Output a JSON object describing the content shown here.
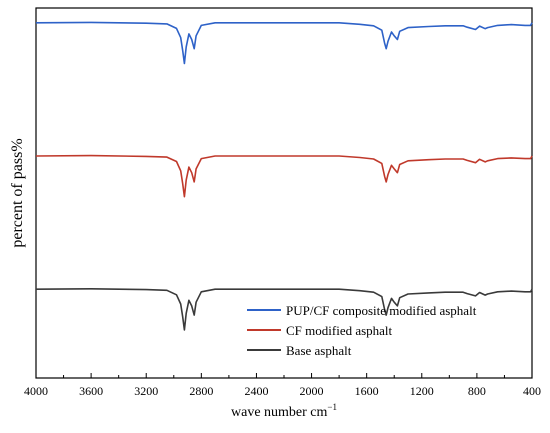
{
  "chart_data": {
    "type": "line",
    "title": "",
    "xlabel": "wave number cm",
    "xlabel_sup": "−1",
    "ylabel": "percent of pass%",
    "xlim": [
      4000,
      400
    ],
    "x_reversed": true,
    "xticks": [
      4000,
      3600,
      3200,
      2800,
      2400,
      2000,
      1600,
      1200,
      800,
      400
    ],
    "y_ticks_shown": false,
    "grid": false,
    "legend_position": "bottom-right",
    "series": [
      {
        "name": "PUP/CF composite modified asphalt",
        "color": "#2e62c8",
        "baseline": 100,
        "points": [
          [
            4000,
            100
          ],
          [
            3600,
            100.1
          ],
          [
            3200,
            99.9
          ],
          [
            3050,
            99.7
          ],
          [
            2980,
            98.5
          ],
          [
            2950,
            96
          ],
          [
            2935,
            92.5
          ],
          [
            2923,
            89
          ],
          [
            2910,
            93.5
          ],
          [
            2890,
            97
          ],
          [
            2870,
            95.5
          ],
          [
            2852,
            93
          ],
          [
            2838,
            96.5
          ],
          [
            2800,
            99.3
          ],
          [
            2700,
            100
          ],
          [
            2400,
            100
          ],
          [
            2000,
            100
          ],
          [
            1800,
            100
          ],
          [
            1650,
            99.6
          ],
          [
            1550,
            99.2
          ],
          [
            1490,
            98
          ],
          [
            1470,
            94.5
          ],
          [
            1458,
            93
          ],
          [
            1445,
            95
          ],
          [
            1420,
            97.5
          ],
          [
            1400,
            96.5
          ],
          [
            1377,
            95.5
          ],
          [
            1360,
            97.7
          ],
          [
            1300,
            98.7
          ],
          [
            1150,
            99
          ],
          [
            1030,
            99.2
          ],
          [
            1000,
            99.2
          ],
          [
            900,
            99.2
          ],
          [
            870,
            98.8
          ],
          [
            810,
            98.2
          ],
          [
            780,
            99.1
          ],
          [
            740,
            98.4
          ],
          [
            722,
            98.7
          ],
          [
            650,
            99.3
          ],
          [
            550,
            99.5
          ],
          [
            450,
            99.3
          ],
          [
            410,
            99.3
          ],
          [
            400,
            100
          ]
        ]
      },
      {
        "name": "CF modified asphalt",
        "color": "#c0392b",
        "baseline": 64,
        "points": [
          [
            4000,
            64
          ],
          [
            3600,
            64.1
          ],
          [
            3200,
            63.9
          ],
          [
            3050,
            63.7
          ],
          [
            2980,
            62.5
          ],
          [
            2950,
            60
          ],
          [
            2935,
            56.5
          ],
          [
            2923,
            53
          ],
          [
            2910,
            57.5
          ],
          [
            2890,
            61
          ],
          [
            2870,
            59.5
          ],
          [
            2852,
            57
          ],
          [
            2838,
            60.5
          ],
          [
            2800,
            63.3
          ],
          [
            2700,
            64
          ],
          [
            2400,
            64
          ],
          [
            2000,
            64
          ],
          [
            1800,
            64
          ],
          [
            1650,
            63.6
          ],
          [
            1550,
            63.2
          ],
          [
            1490,
            62
          ],
          [
            1470,
            58.5
          ],
          [
            1458,
            57
          ],
          [
            1445,
            59
          ],
          [
            1420,
            61.5
          ],
          [
            1400,
            60.5
          ],
          [
            1377,
            59.5
          ],
          [
            1360,
            61.7
          ],
          [
            1300,
            62.7
          ],
          [
            1150,
            63
          ],
          [
            1030,
            63.2
          ],
          [
            1000,
            63.2
          ],
          [
            900,
            63.2
          ],
          [
            870,
            62.8
          ],
          [
            810,
            62.2
          ],
          [
            780,
            63.1
          ],
          [
            740,
            62.4
          ],
          [
            722,
            62.7
          ],
          [
            650,
            63.3
          ],
          [
            550,
            63.5
          ],
          [
            450,
            63.3
          ],
          [
            410,
            63.3
          ],
          [
            400,
            64
          ]
        ]
      },
      {
        "name": "Base asphalt",
        "color": "#3a3a3a",
        "baseline": 28,
        "points": [
          [
            4000,
            28
          ],
          [
            3600,
            28.1
          ],
          [
            3200,
            27.9
          ],
          [
            3050,
            27.7
          ],
          [
            2980,
            26.5
          ],
          [
            2950,
            24
          ],
          [
            2935,
            20.5
          ],
          [
            2923,
            17
          ],
          [
            2910,
            21.5
          ],
          [
            2890,
            25
          ],
          [
            2870,
            23.5
          ],
          [
            2852,
            21
          ],
          [
            2838,
            24.5
          ],
          [
            2800,
            27.3
          ],
          [
            2700,
            28
          ],
          [
            2400,
            28
          ],
          [
            2000,
            28
          ],
          [
            1800,
            28
          ],
          [
            1650,
            27.6
          ],
          [
            1550,
            27.2
          ],
          [
            1490,
            26
          ],
          [
            1470,
            22.5
          ],
          [
            1458,
            21
          ],
          [
            1445,
            23
          ],
          [
            1420,
            25.5
          ],
          [
            1400,
            24.5
          ],
          [
            1377,
            23.5
          ],
          [
            1360,
            25.7
          ],
          [
            1300,
            26.7
          ],
          [
            1150,
            27
          ],
          [
            1030,
            27.2
          ],
          [
            1000,
            27.2
          ],
          [
            900,
            27.2
          ],
          [
            870,
            26.8
          ],
          [
            810,
            26.2
          ],
          [
            780,
            27.1
          ],
          [
            740,
            26.4
          ],
          [
            722,
            26.7
          ],
          [
            650,
            27.3
          ],
          [
            550,
            27.5
          ],
          [
            450,
            27.3
          ],
          [
            410,
            27.3
          ],
          [
            400,
            28
          ]
        ]
      }
    ]
  }
}
